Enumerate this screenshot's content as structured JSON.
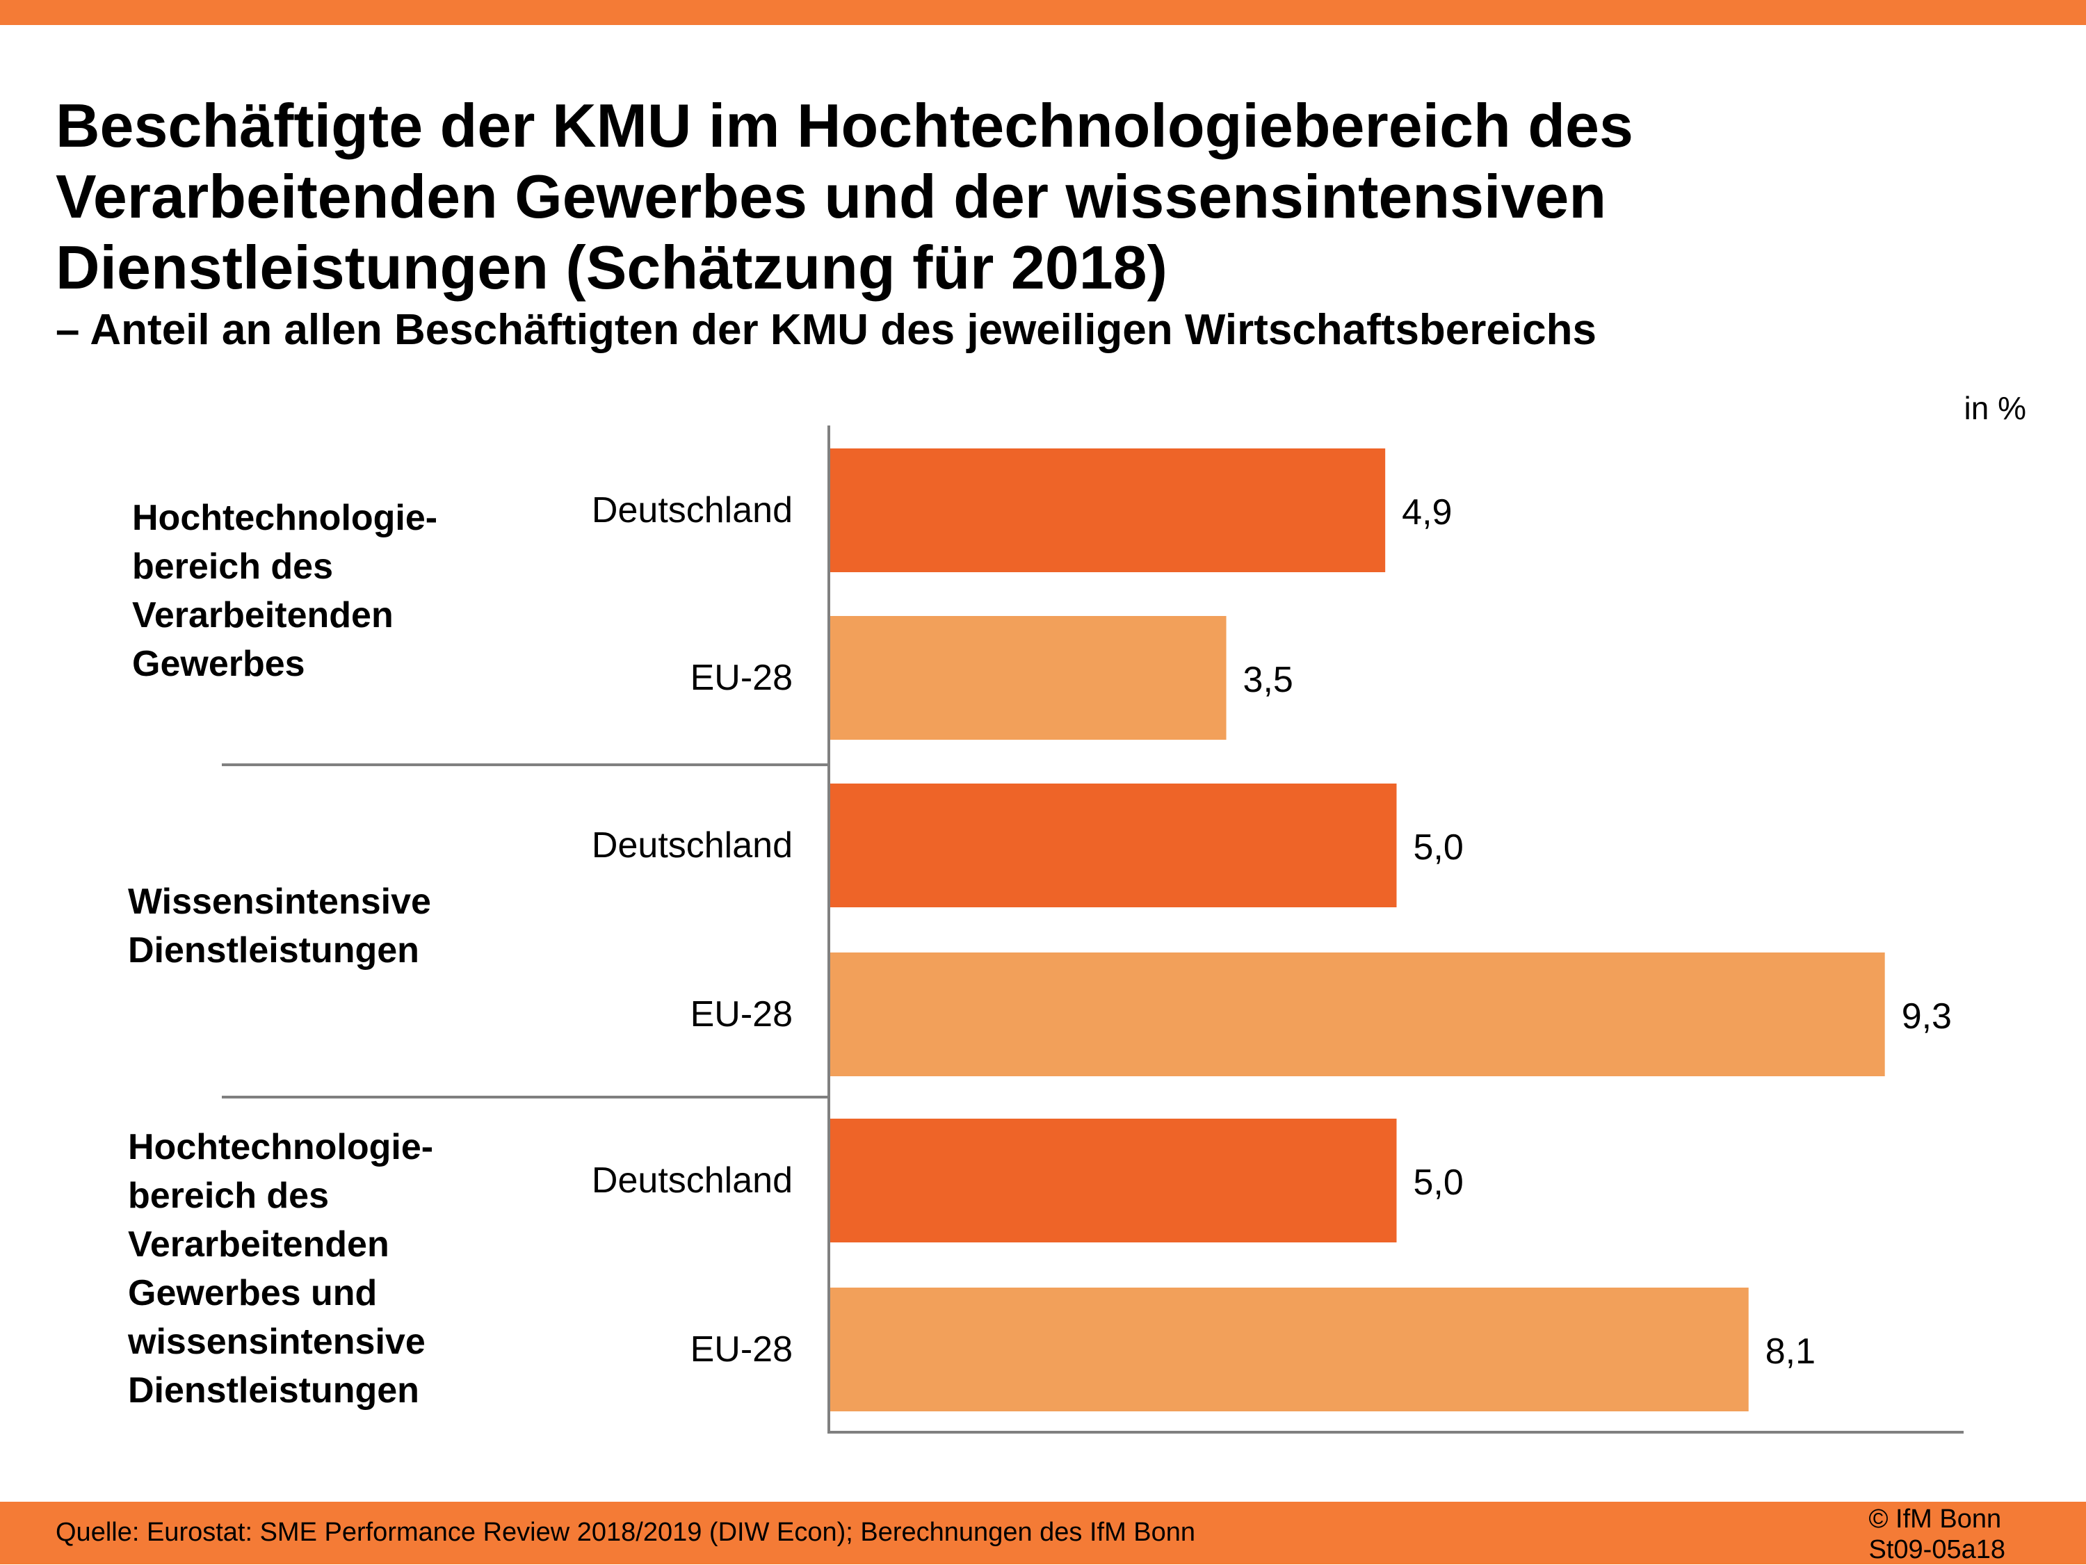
{
  "header": {
    "title": "Beschäftigte der KMU im Hochtechnologiebereich des Verarbeitenden Gewerbes und der wissensintensiven Dienstleistungen (Schätzung für 2018)",
    "subtitle": "– Anteil an allen Beschäftigten der KMU des jeweiligen Wirtschaftsbereichs",
    "unit": "in %"
  },
  "footer": {
    "source": "Quelle:  Eurostat: SME Performance Review 2018/2019 (DIW Econ); Berechnungen des IfM Bonn",
    "copyright": "© IfM Bonn",
    "code": "St09-05a18"
  },
  "colors": {
    "accent": "#F47B36",
    "deutschland": "#EE6428",
    "eu28": "#F2A05A",
    "axis": "#808080"
  },
  "chart_data": {
    "type": "bar",
    "orientation": "horizontal",
    "title": "Beschäftigte der KMU im Hochtechnologiebereich des Verarbeitenden Gewerbes und der wissensintensiven Dienstleistungen (Schätzung für 2018)",
    "subtitle": "– Anteil an allen Beschäftigten der KMU des jeweiligen Wirtschaftsbereichs",
    "xlabel": "",
    "ylabel": "",
    "unit": "in %",
    "xlim": [
      0,
      10
    ],
    "grid": false,
    "legend": "none",
    "groups": [
      {
        "label": "Hochtechnologie-\nbereich des\nVerarbeitenden\nGewerbes",
        "bars": [
          {
            "category": "Deutschland",
            "value": 4.9,
            "label": "4,9"
          },
          {
            "category": "EU-28",
            "value": 3.5,
            "label": "3,5"
          }
        ]
      },
      {
        "label": "Wissensintensive\nDienstleistungen",
        "bars": [
          {
            "category": "Deutschland",
            "value": 5.0,
            "label": "5,0"
          },
          {
            "category": "EU-28",
            "value": 9.3,
            "label": "9,3"
          }
        ]
      },
      {
        "label": "Hochtechnologie-\nbereich des\nVerarbeitenden\nGewerbes und\nwissensintensive\nDienstleistungen",
        "bars": [
          {
            "category": "Deutschland",
            "value": 5.0,
            "label": "5,0"
          },
          {
            "category": "EU-28",
            "value": 8.1,
            "label": "8,1"
          }
        ]
      }
    ],
    "series": [
      {
        "name": "Deutschland",
        "values": [
          4.9,
          5.0,
          5.0
        ]
      },
      {
        "name": "EU-28",
        "values": [
          3.5,
          9.3,
          8.1
        ]
      }
    ]
  }
}
